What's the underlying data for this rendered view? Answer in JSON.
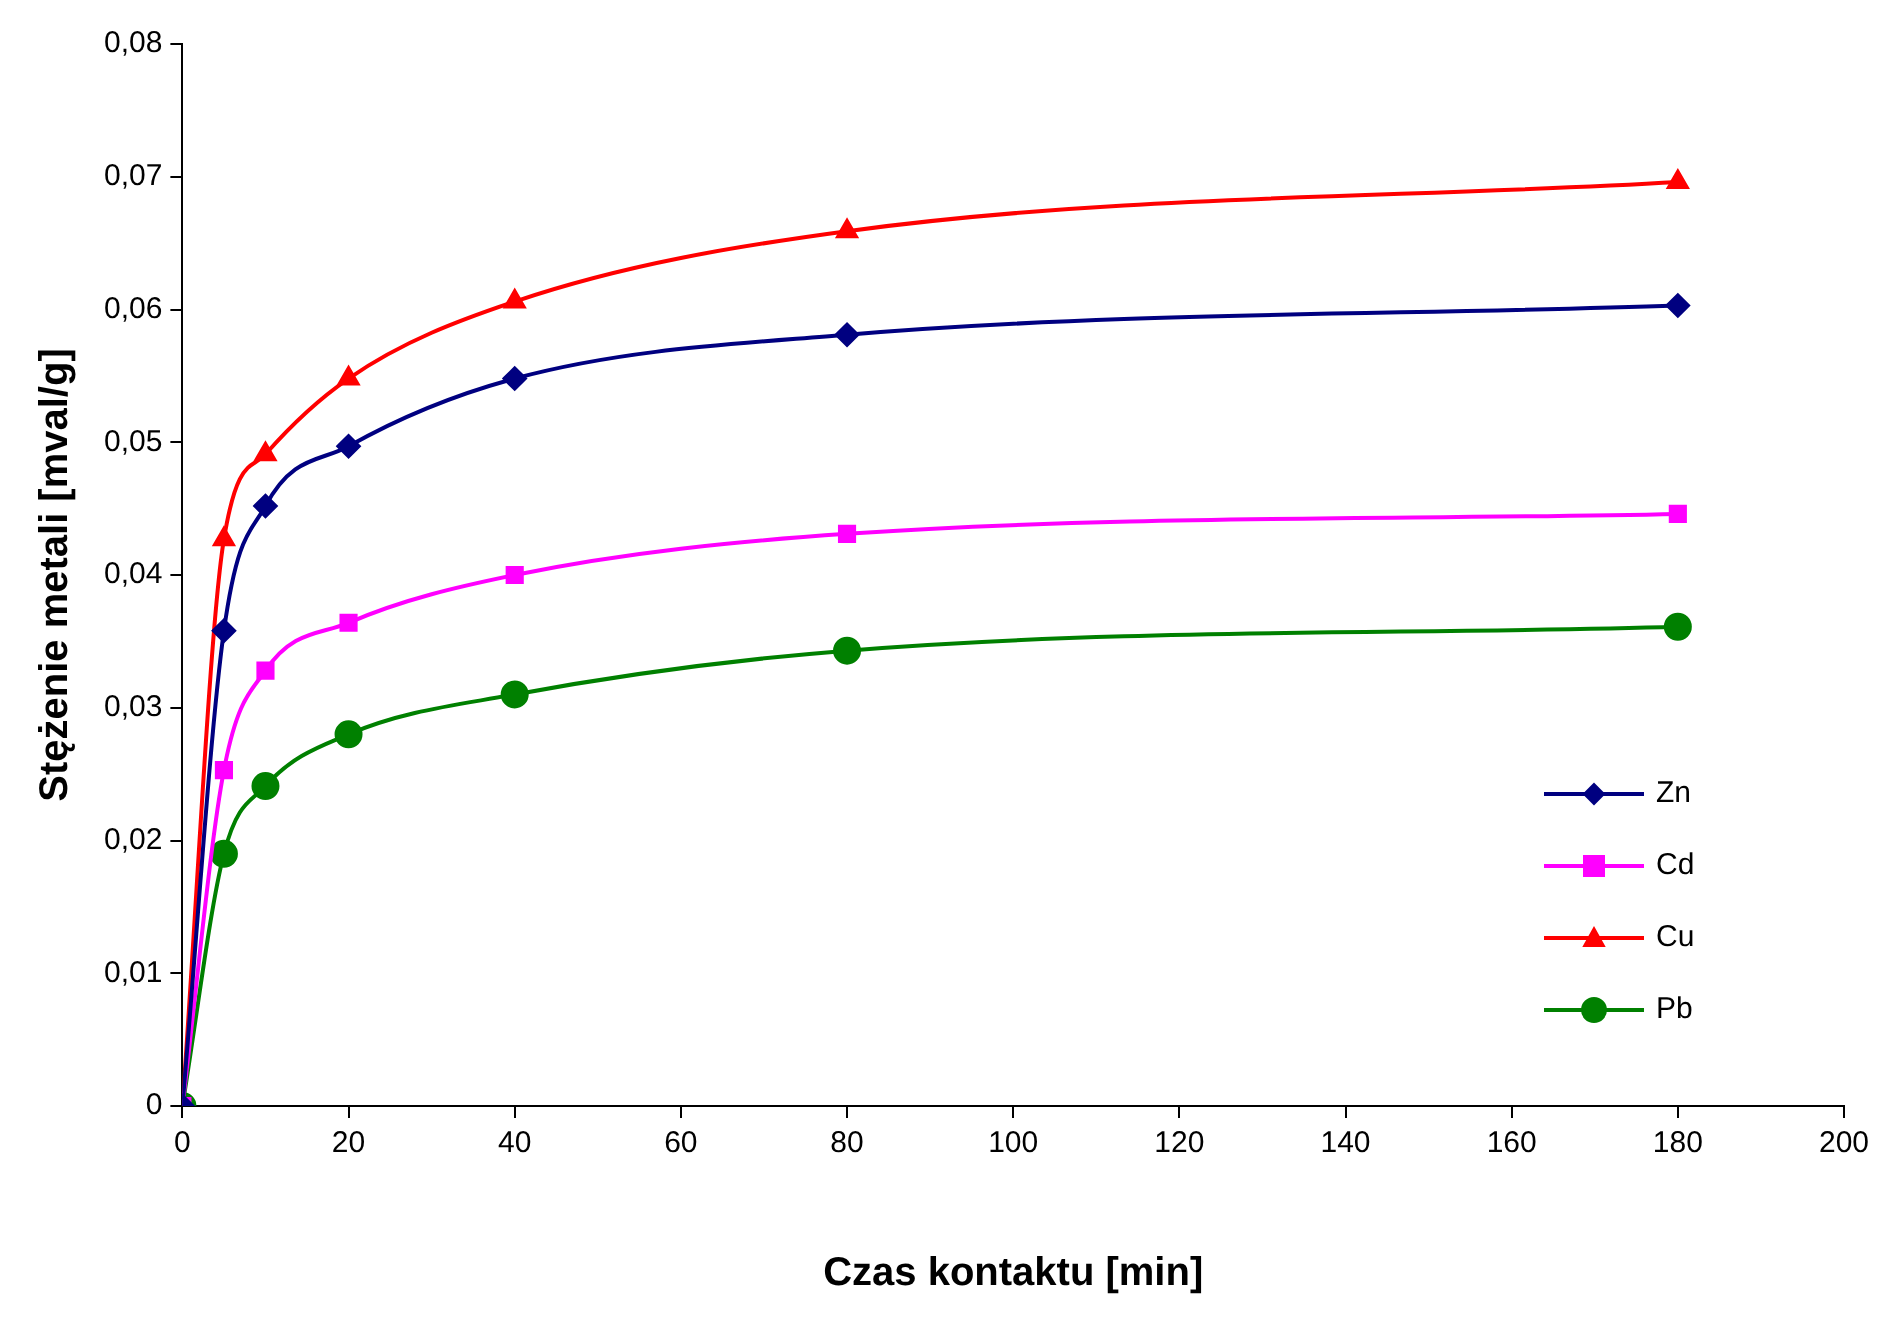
{
  "chart_data": {
    "type": "line",
    "xlabel": "Czas kontaktu [min]",
    "ylabel": "Stężenie metali [mval/g]",
    "xlim": [
      0,
      200
    ],
    "xticks": [
      0,
      20,
      40,
      60,
      80,
      100,
      120,
      140,
      160,
      180,
      200
    ],
    "ylim": [
      0,
      0.08
    ],
    "yticks": [
      0,
      {
        "value": 0.01,
        "label": "0,01"
      },
      {
        "value": 0.02,
        "label": "0,02"
      },
      {
        "value": 0.03,
        "label": "0,03"
      },
      {
        "value": 0.04,
        "label": "0,04"
      },
      {
        "value": 0.05,
        "label": "0,05"
      },
      {
        "value": 0.06,
        "label": "0,06"
      },
      {
        "value": 0.07,
        "label": "0,07"
      },
      {
        "value": 0.08,
        "label": "0,08"
      }
    ],
    "x": [
      0,
      5,
      10,
      20,
      40,
      80,
      180
    ],
    "grid": false,
    "legend": "bottom right",
    "line_style": "solid",
    "series": [
      {
        "name": "Zn",
        "color": "#000080",
        "marker": "diamond",
        "values": [
          0,
          0.0358,
          0.0452,
          0.0497,
          0.0548,
          0.0581,
          0.0603
        ]
      },
      {
        "name": "Cd",
        "color": "#ff00ff",
        "marker": "square",
        "values": [
          0,
          0.0253,
          0.0328,
          0.0364,
          0.04,
          0.0431,
          0.0446
        ]
      },
      {
        "name": "Cu",
        "color": "#ff0000",
        "marker": "triangle",
        "values": [
          0,
          0.0427,
          0.0491,
          0.0548,
          0.0606,
          0.0659,
          0.0696
        ]
      },
      {
        "name": "Pb",
        "color": "#008000",
        "marker": "circle",
        "values": [
          0,
          0.019,
          0.0241,
          0.028,
          0.031,
          0.0343,
          0.0361
        ]
      }
    ]
  }
}
